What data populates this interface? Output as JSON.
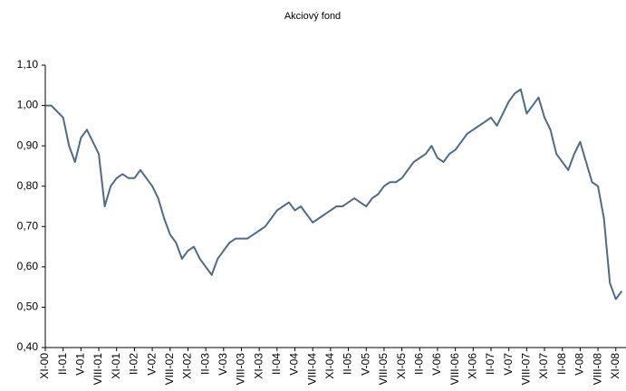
{
  "chart_data": {
    "type": "line",
    "title": "Akciový fond",
    "categories": [
      "XI-00",
      null,
      null,
      "II-01",
      null,
      null,
      "V-01",
      null,
      null,
      "VIII-01",
      null,
      null,
      "XI-01",
      null,
      null,
      "II-02",
      null,
      null,
      "V-02",
      null,
      null,
      "VIII-02",
      null,
      null,
      "XI-02",
      null,
      null,
      "II-03",
      null,
      null,
      "V-03",
      null,
      null,
      "VIII-03",
      null,
      null,
      "XI-03",
      null,
      null,
      "II-04",
      null,
      null,
      "V-04",
      null,
      null,
      "VIII-04",
      null,
      null,
      "XI-04",
      null,
      null,
      "II-05",
      null,
      null,
      "V-05",
      null,
      null,
      "VIII-05",
      null,
      null,
      "XI-05",
      null,
      null,
      "II-06",
      null,
      null,
      "V-06",
      null,
      null,
      "VIII-06",
      null,
      null,
      "XI-06",
      null,
      null,
      "II-07",
      null,
      null,
      "V-07",
      null,
      null,
      "VIII-07",
      null,
      null,
      "XI-07",
      null,
      null,
      "II-08",
      null,
      null,
      "V-08",
      null,
      null,
      "VIII-08",
      null,
      null,
      "XI-08",
      null
    ],
    "values": [
      1.0,
      1.0,
      0.985,
      0.97,
      0.9,
      0.86,
      0.92,
      0.94,
      0.91,
      0.88,
      0.75,
      0.8,
      0.82,
      0.83,
      0.82,
      0.82,
      0.84,
      0.82,
      0.8,
      0.77,
      0.72,
      0.68,
      0.66,
      0.62,
      0.64,
      0.65,
      0.62,
      0.6,
      0.58,
      0.62,
      0.64,
      0.66,
      0.67,
      0.67,
      0.67,
      0.68,
      0.69,
      0.7,
      0.72,
      0.74,
      0.75,
      0.76,
      0.74,
      0.75,
      0.73,
      0.71,
      0.72,
      0.73,
      0.74,
      0.75,
      0.75,
      0.76,
      0.77,
      0.76,
      0.75,
      0.77,
      0.78,
      0.8,
      0.81,
      0.81,
      0.82,
      0.84,
      0.86,
      0.87,
      0.88,
      0.9,
      0.87,
      0.86,
      0.88,
      0.89,
      0.91,
      0.93,
      0.94,
      0.95,
      0.96,
      0.97,
      0.95,
      0.98,
      1.01,
      1.03,
      1.04,
      0.98,
      1.0,
      1.02,
      0.97,
      0.94,
      0.88,
      0.86,
      0.84,
      0.88,
      0.91,
      0.86,
      0.81,
      0.8,
      0.72,
      0.56,
      0.52,
      0.54
    ],
    "color": "#4f6b88",
    "ylim": [
      0.4,
      1.1
    ],
    "yticks": [
      {
        "value": 0.4,
        "label": "0,40"
      },
      {
        "value": 0.5,
        "label": "0,50"
      },
      {
        "value": 0.6,
        "label": "0,60"
      },
      {
        "value": 0.7,
        "label": "0,70"
      },
      {
        "value": 0.8,
        "label": "0,80"
      },
      {
        "value": 0.9,
        "label": "0,90"
      },
      {
        "value": 1.0,
        "label": "1,00"
      },
      {
        "value": 1.1,
        "label": "1,10"
      }
    ],
    "grid": false
  }
}
